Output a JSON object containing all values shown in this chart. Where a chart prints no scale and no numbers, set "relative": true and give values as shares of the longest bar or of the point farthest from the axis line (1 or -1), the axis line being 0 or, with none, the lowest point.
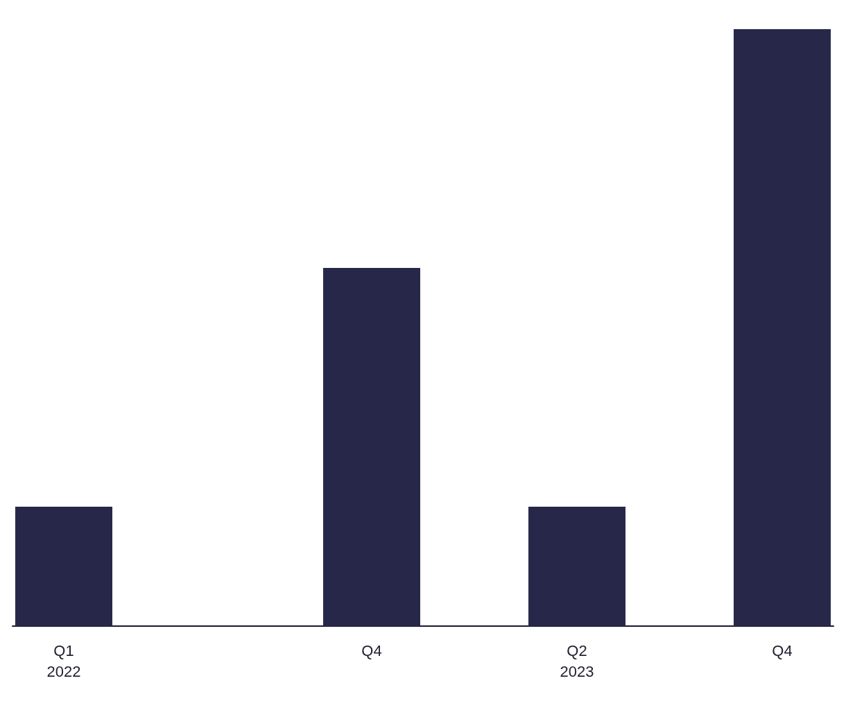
{
  "chart_data": {
    "type": "bar",
    "relative": true,
    "categories": [
      "Q1\n2022",
      null,
      null,
      "Q4",
      null,
      "Q2\n2023",
      null,
      "Q4"
    ],
    "values": [
      0.2,
      null,
      null,
      0.6,
      null,
      0.2,
      null,
      1
    ],
    "color": "#272849"
  }
}
